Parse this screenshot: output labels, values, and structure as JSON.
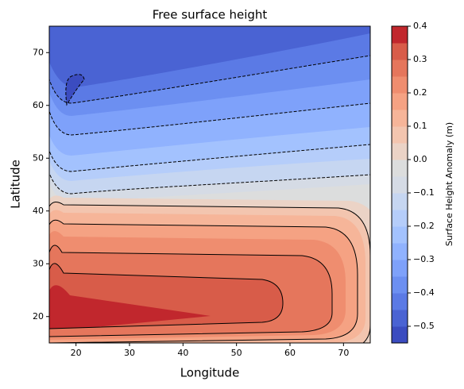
{
  "chart_data": {
    "type": "contour",
    "title": "Free surface height",
    "xlabel": "Longitude",
    "ylabel": "Latitude",
    "colorbar_label": "Surface Height Anomaly (m)",
    "xlim": [
      15,
      75
    ],
    "ylim": [
      15,
      75
    ],
    "xticks": [
      20,
      30,
      40,
      50,
      60,
      70
    ],
    "yticks": [
      20,
      30,
      40,
      50,
      60,
      70
    ],
    "levels": [
      -0.55,
      -0.5,
      -0.45,
      -0.4,
      -0.35,
      -0.3,
      -0.25,
      -0.2,
      -0.15,
      -0.1,
      -0.05,
      0,
      0.05,
      0.1,
      0.15,
      0.2,
      0.25,
      0.3,
      0.35,
      0.4
    ],
    "colors": [
      "#3b4cc0",
      "#4a63d3",
      "#5b7ae5",
      "#6c8ff1",
      "#7ea1fa",
      "#90b2fe",
      "#a3c2fe",
      "#b5cdfa",
      "#c6d6f1",
      "#d5dbe5",
      "#dcdddd",
      "#ebd3c6",
      "#f3c5af",
      "#f6b599",
      "#f5a283",
      "#ef8d6f",
      "#e5765c",
      "#d85c49",
      "#c1272d"
    ],
    "clim": [
      -0.55,
      0.4
    ],
    "cticks": [
      {
        "value": -0.5,
        "label": "−0.5"
      },
      {
        "value": -0.4,
        "label": "−0.4"
      },
      {
        "value": -0.3,
        "label": "−0.3"
      },
      {
        "value": -0.2,
        "label": "−0.2"
      },
      {
        "value": -0.1,
        "label": "−0.1"
      },
      {
        "value": 0,
        "label": "0.0"
      },
      0.1,
      0.2,
      0.3,
      0.4
    ]
  }
}
